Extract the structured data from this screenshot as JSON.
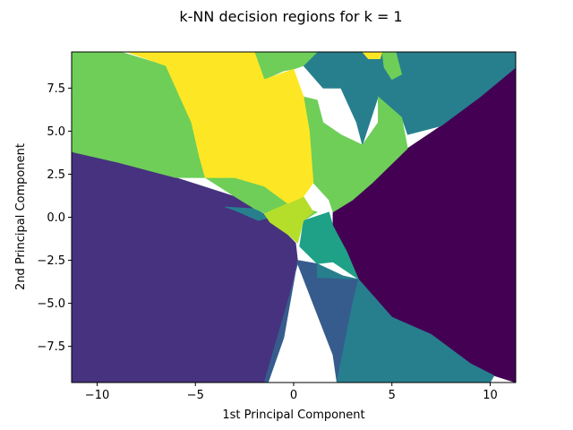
{
  "chart_data": {
    "type": "heatmap",
    "title": "k-NN decision regions for k = 1",
    "xlabel": "1st Principal Component",
    "ylabel": "2nd Principal Component",
    "xlim": [
      -11.3,
      11.3
    ],
    "ylim": [
      -9.6,
      9.6
    ],
    "xticks": [
      -10,
      -5,
      0,
      5,
      10
    ],
    "xtick_labels": [
      "−10",
      "−5",
      "0",
      "5",
      "10"
    ],
    "yticks": [
      -7.5,
      -5.0,
      -2.5,
      0.0,
      2.5,
      5.0,
      7.5
    ],
    "ytick_labels": [
      "−7.5",
      "−5.0",
      "−2.5",
      "0.0",
      "2.5",
      "5.0",
      "7.5"
    ],
    "grid": false,
    "colormap": "viridis",
    "regions": [
      {
        "class": 0,
        "color": "#440154",
        "polygon": [
          [
            2.0,
            0.3
          ],
          [
            3.0,
            1.0
          ],
          [
            4.0,
            2.0
          ],
          [
            5.8,
            4.0
          ],
          [
            7.5,
            5.3
          ],
          [
            9.5,
            7.0
          ],
          [
            11.3,
            8.7
          ],
          [
            11.3,
            -9.6
          ],
          [
            10.2,
            -9.2
          ],
          [
            9.0,
            -8.5
          ],
          [
            7.0,
            -6.8
          ],
          [
            5.0,
            -5.8
          ],
          [
            3.3,
            -3.6
          ],
          [
            2.7,
            -2.0
          ],
          [
            2.0,
            -0.5
          ]
        ]
      },
      {
        "class": 1,
        "color": "#46327e",
        "polygon": [
          [
            -11.3,
            3.8
          ],
          [
            -9.0,
            3.2
          ],
          [
            -6.0,
            2.3
          ],
          [
            -3.0,
            1.2
          ],
          [
            -2.0,
            0.5
          ],
          [
            -1.2,
            0.0
          ],
          [
            0.1,
            -1.5
          ],
          [
            0.2,
            -2.5
          ],
          [
            -0.2,
            -4.5
          ],
          [
            -1.5,
            -9.6
          ],
          [
            -11.3,
            -9.6
          ]
        ]
      },
      {
        "class": 2,
        "color": "#365c8d",
        "polygon": [
          [
            0.2,
            -2.5
          ],
          [
            1.2,
            -2.7
          ],
          [
            1.2,
            -3.5
          ],
          [
            3.3,
            -3.6
          ],
          [
            3.5,
            -5.0
          ],
          [
            3.0,
            -9.6
          ],
          [
            2.2,
            -9.6
          ],
          [
            2.0,
            -8.0
          ],
          [
            0.2,
            -2.7
          ],
          [
            -0.2,
            -4.5
          ],
          [
            -1.5,
            -9.6
          ],
          [
            -1.3,
            -9.6
          ],
          [
            -0.5,
            -7.0
          ],
          [
            0.2,
            -2.5
          ]
        ]
      },
      {
        "class": 3,
        "color": "#277f8e",
        "polygon": [
          [
            2.2,
            -9.6
          ],
          [
            3.0,
            -5.0
          ],
          [
            3.3,
            -3.6
          ],
          [
            2.5,
            -3.4
          ],
          [
            1.2,
            -2.7
          ],
          [
            1.2,
            -3.5
          ],
          [
            3.3,
            -3.6
          ],
          [
            5.0,
            -5.8
          ],
          [
            7.0,
            -6.8
          ],
          [
            9.0,
            -8.5
          ],
          [
            10.2,
            -9.2
          ],
          [
            10.0,
            -9.6
          ]
        ]
      },
      {
        "class": 4,
        "color": "#1fa187",
        "polygon": [
          [
            0.5,
            -0.2
          ],
          [
            1.8,
            0.3
          ],
          [
            2.0,
            -0.5
          ],
          [
            2.7,
            -2.0
          ],
          [
            3.3,
            -3.6
          ],
          [
            2.0,
            -2.6
          ],
          [
            1.2,
            -2.7
          ],
          [
            0.3,
            -1.7
          ]
        ]
      },
      {
        "class": 5,
        "color": "#277f8e",
        "polygon": [
          [
            -3.5,
            0.6
          ],
          [
            -2.0,
            0.5
          ],
          [
            -1.2,
            0.0
          ],
          [
            -1.8,
            -0.2
          ],
          [
            -3.0,
            0.4
          ]
        ]
      },
      {
        "class": 6,
        "color": "#277f8e",
        "polygon": [
          [
            1.2,
            9.6
          ],
          [
            11.3,
            9.6
          ],
          [
            11.3,
            8.7
          ],
          [
            9.5,
            7.0
          ],
          [
            7.5,
            5.3
          ],
          [
            5.8,
            4.8
          ],
          [
            5.5,
            5.8
          ],
          [
            4.3,
            7.0
          ],
          [
            3.5,
            4.2
          ],
          [
            3.2,
            5.5
          ],
          [
            2.4,
            7.5
          ],
          [
            1.5,
            7.5
          ],
          [
            0.5,
            8.8
          ]
        ]
      },
      {
        "class": 7,
        "color": "#6ece58",
        "polygon": [
          [
            -11.3,
            9.6
          ],
          [
            -8.8,
            9.6
          ],
          [
            -6.5,
            8.8
          ],
          [
            -5.2,
            5.5
          ],
          [
            -4.8,
            3.5
          ],
          [
            -4.5,
            2.3
          ],
          [
            -3.0,
            1.2
          ],
          [
            -2.0,
            0.5
          ],
          [
            -1.0,
            0.0
          ],
          [
            0.5,
            -0.2
          ],
          [
            1.2,
            0.3
          ],
          [
            -0.2,
            0.8
          ],
          [
            -1.3,
            1.8
          ],
          [
            -3.0,
            2.3
          ],
          [
            -6.0,
            2.3
          ],
          [
            -9.0,
            3.2
          ],
          [
            -11.3,
            3.8
          ]
        ]
      },
      {
        "class": 8,
        "color": "#6ece58",
        "polygon": [
          [
            0.5,
            7.0
          ],
          [
            1.2,
            6.8
          ],
          [
            1.5,
            5.5
          ],
          [
            2.4,
            4.8
          ],
          [
            3.5,
            4.2
          ],
          [
            4.3,
            5.5
          ],
          [
            4.3,
            7.0
          ],
          [
            5.5,
            5.8
          ],
          [
            5.8,
            4.0
          ],
          [
            4.0,
            2.0
          ],
          [
            3.0,
            1.0
          ],
          [
            2.0,
            0.3
          ],
          [
            1.8,
            1.0
          ],
          [
            1.0,
            2.0
          ],
          [
            0.8,
            5.0
          ]
        ]
      },
      {
        "class": 8,
        "color": "#6ece58",
        "polygon": [
          [
            -2.0,
            9.6
          ],
          [
            1.2,
            9.6
          ],
          [
            0.5,
            8.8
          ],
          [
            0.0,
            8.6
          ],
          [
            -0.5,
            8.5
          ],
          [
            -1.5,
            8.0
          ]
        ]
      },
      {
        "class": 8,
        "color": "#6ece58",
        "polygon": [
          [
            4.5,
            9.6
          ],
          [
            5.2,
            9.6
          ],
          [
            5.5,
            8.3
          ],
          [
            5.0,
            8.0
          ],
          [
            4.6,
            8.7
          ]
        ]
      },
      {
        "class": 9,
        "color": "#b5de2b",
        "polygon": [
          [
            -1.5,
            0.2
          ],
          [
            0.5,
            1.2
          ],
          [
            1.0,
            0.3
          ],
          [
            0.5,
            -0.2
          ],
          [
            0.2,
            -1.5
          ],
          [
            -0.3,
            -1.0
          ],
          [
            -1.2,
            -0.3
          ]
        ]
      },
      {
        "class": 10,
        "color": "#fde725",
        "polygon": [
          [
            -8.5,
            9.6
          ],
          [
            -2.0,
            9.6
          ],
          [
            -1.5,
            8.0
          ],
          [
            0.0,
            8.6
          ],
          [
            0.5,
            7.0
          ],
          [
            0.8,
            5.0
          ],
          [
            1.0,
            2.0
          ],
          [
            0.5,
            1.2
          ],
          [
            -0.3,
            0.8
          ],
          [
            -1.5,
            1.8
          ],
          [
            -3.0,
            2.3
          ],
          [
            -4.5,
            2.3
          ],
          [
            -4.8,
            3.5
          ],
          [
            -5.2,
            5.5
          ],
          [
            -6.5,
            8.8
          ]
        ]
      },
      {
        "class": 10,
        "color": "#fde725",
        "polygon": [
          [
            3.5,
            9.6
          ],
          [
            4.5,
            9.6
          ],
          [
            4.4,
            9.2
          ],
          [
            3.8,
            9.2
          ]
        ]
      }
    ]
  }
}
